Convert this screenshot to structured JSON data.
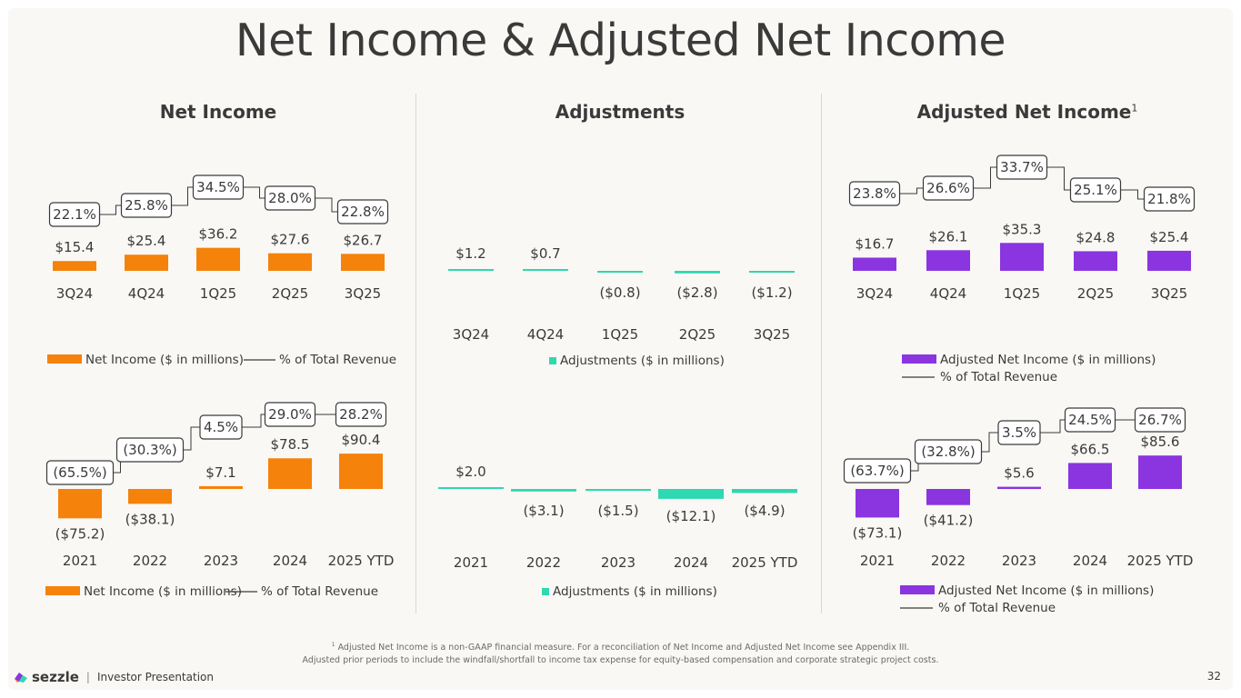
{
  "slide": {
    "title": "Net Income & Adjusted Net Income",
    "sections": {
      "net_income": "Net Income",
      "adjustments": "Adjustments",
      "adjusted_net_income": "Adjusted Net Income",
      "adjusted_net_income_sup": "1"
    },
    "footnote_sup": "1",
    "footnote_line1": "Adjusted Net Income is a non-GAAP financial measure. For a reconciliation of Net Income and Adjusted Net Income see Appendix III.",
    "footnote_line2": "Adjusted prior periods to include the windfall/shortfall to income tax expense for equity-based compensation and corporate strategic project costs.",
    "brand": "sezzle",
    "brand_tagline": "Investor Presentation",
    "page_number": "32",
    "colors": {
      "net_income": "#f5820b",
      "adjustments": "#2ed8b0",
      "adjusted": "#8a35e0",
      "text": "#3a3a3a"
    }
  },
  "chart_data": [
    {
      "id": "ni-quarterly",
      "type": "bar",
      "categories": [
        "3Q24",
        "4Q24",
        "1Q25",
        "2Q25",
        "3Q25"
      ],
      "series": [
        {
          "name": "Net Income ($ in millions)",
          "values": [
            15.4,
            25.4,
            36.2,
            27.6,
            26.7
          ],
          "labels": [
            "$15.4",
            "$25.4",
            "$36.2",
            "$27.6",
            "$26.7"
          ]
        },
        {
          "name": "% of Total Revenue",
          "values": [
            22.1,
            25.8,
            34.5,
            28.0,
            22.8
          ],
          "labels": [
            "22.1%",
            "25.8%",
            "34.5%",
            "28.0%",
            "22.8%"
          ]
        }
      ],
      "legend": [
        "Net Income ($ in millions)",
        "% of Total Revenue"
      ],
      "color": "#f5820b"
    },
    {
      "id": "adj-quarterly",
      "type": "bar",
      "categories": [
        "3Q24",
        "4Q24",
        "1Q25",
        "2Q25",
        "3Q25"
      ],
      "series": [
        {
          "name": "Adjustments ($ in millions)",
          "values": [
            1.2,
            0.7,
            -0.8,
            -2.8,
            -1.2
          ],
          "labels": [
            "$1.2",
            "$0.7",
            "($0.8)",
            "($2.8)",
            "($1.2)"
          ]
        }
      ],
      "legend": [
        "Adjustments ($ in millions)"
      ],
      "color": "#2ed8b0"
    },
    {
      "id": "ani-quarterly",
      "type": "bar",
      "categories": [
        "3Q24",
        "4Q24",
        "1Q25",
        "2Q25",
        "3Q25"
      ],
      "series": [
        {
          "name": "Adjusted Net Income ($ in millions)",
          "values": [
            16.7,
            26.1,
            35.3,
            24.8,
            25.4
          ],
          "labels": [
            "$16.7",
            "$26.1",
            "$35.3",
            "$24.8",
            "$25.4"
          ]
        },
        {
          "name": "% of Total Revenue",
          "values": [
            23.8,
            26.6,
            33.7,
            25.1,
            21.8
          ],
          "labels": [
            "23.8%",
            "26.6%",
            "33.7%",
            "25.1%",
            "21.8%"
          ]
        }
      ],
      "legend": [
        "Adjusted Net Income ($ in millions)",
        "% of Total Revenue"
      ],
      "color": "#8a35e0"
    },
    {
      "id": "ni-annual",
      "type": "bar",
      "categories": [
        "2021",
        "2022",
        "2023",
        "2024",
        "2025 YTD"
      ],
      "series": [
        {
          "name": "Net Income ($ in millions)",
          "values": [
            -75.2,
            -38.1,
            7.1,
            78.5,
            90.4
          ],
          "labels": [
            "($75.2)",
            "($38.1)",
            "$7.1",
            "$78.5",
            "$90.4"
          ]
        },
        {
          "name": "% of Total Revenue",
          "values": [
            -65.5,
            -30.3,
            4.5,
            29.0,
            28.2
          ],
          "labels": [
            "(65.5%)",
            "(30.3%)",
            "4.5%",
            "29.0%",
            "28.2%"
          ]
        }
      ],
      "legend": [
        "Net Income ($ in millions)",
        "% of Total Revenue"
      ],
      "color": "#f5820b"
    },
    {
      "id": "adj-annual",
      "type": "bar",
      "categories": [
        "2021",
        "2022",
        "2023",
        "2024",
        "2025 YTD"
      ],
      "series": [
        {
          "name": "Adjustments ($ in millions)",
          "values": [
            2.0,
            -3.1,
            -1.5,
            -12.1,
            -4.9
          ],
          "labels": [
            "$2.0",
            "($3.1)",
            "($1.5)",
            "($12.1)",
            "($4.9)"
          ]
        }
      ],
      "legend": [
        "Adjustments ($ in millions)"
      ],
      "color": "#2ed8b0"
    },
    {
      "id": "ani-annual",
      "type": "bar",
      "categories": [
        "2021",
        "2022",
        "2023",
        "2024",
        "2025 YTD"
      ],
      "series": [
        {
          "name": "Adjusted Net Income ($ in millions)",
          "values": [
            -73.1,
            -41.2,
            5.6,
            66.5,
            85.6
          ],
          "labels": [
            "($73.1)",
            "($41.2)",
            "$5.6",
            "$66.5",
            "$85.6"
          ]
        },
        {
          "name": "% of Total Revenue",
          "values": [
            -63.7,
            -32.8,
            3.5,
            24.5,
            26.7
          ],
          "labels": [
            "(63.7%)",
            "(32.8%)",
            "3.5%",
            "24.5%",
            "26.7%"
          ]
        }
      ],
      "legend": [
        "Adjusted Net Income ($ in millions)",
        "% of Total Revenue"
      ],
      "color": "#8a35e0"
    }
  ]
}
